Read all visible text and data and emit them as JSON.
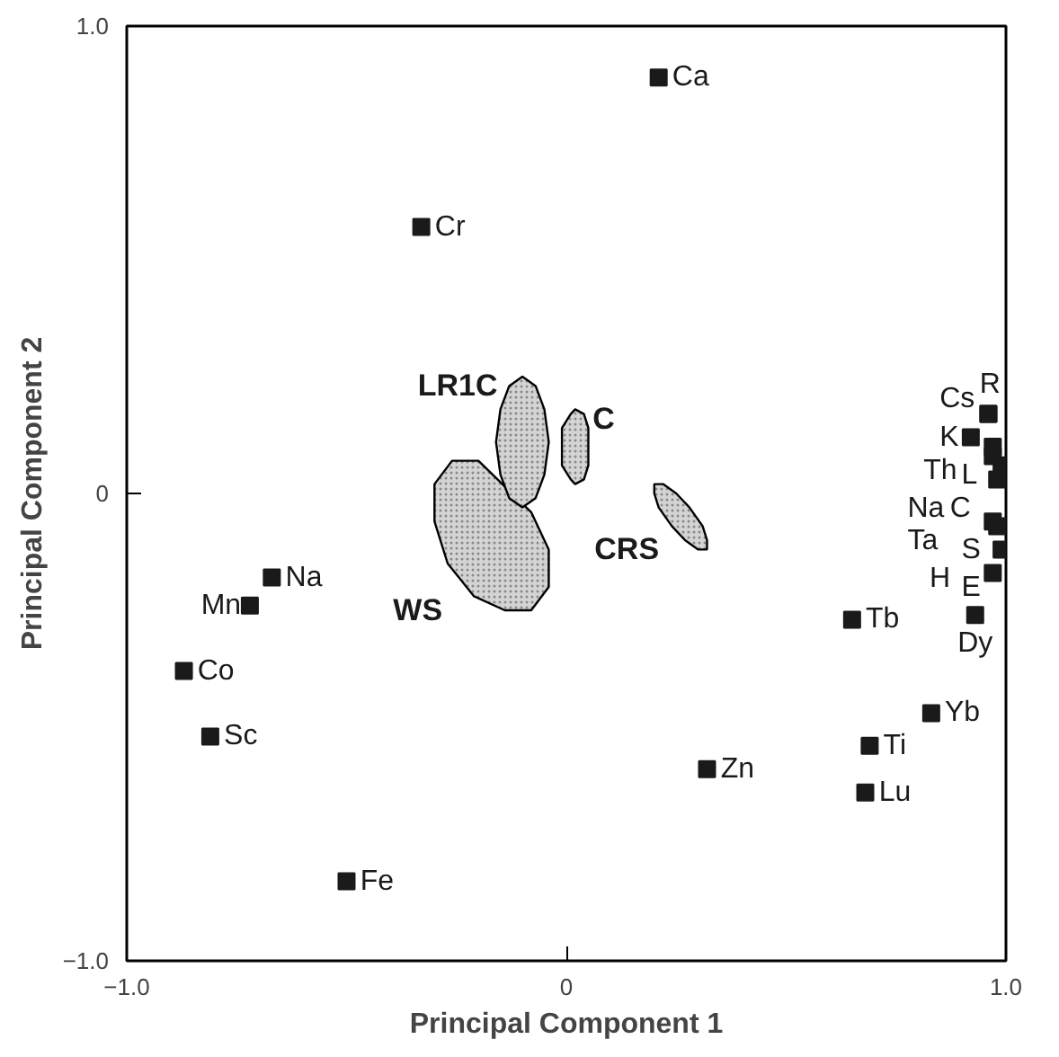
{
  "chart_data": {
    "type": "scatter",
    "xlabel": "Principal Component 1",
    "ylabel": "Principal Component 2",
    "xlim": [
      -1.0,
      1.0
    ],
    "ylim": [
      -1.0,
      1.0
    ],
    "xticks": [
      {
        "value": -1.0,
        "label": "−1.0"
      },
      0,
      {
        "value": 1.0,
        "label": "1.0"
      }
    ],
    "yticks": [
      {
        "value": -1.0,
        "label": "−1.0"
      },
      0,
      {
        "value": 1.0,
        "label": "1.0"
      }
    ],
    "grid": false,
    "marker": "square",
    "series": [
      {
        "type": "area",
        "marker": "none",
        "name": "WS",
        "color": "#d4d4d4",
        "x": [
          -0.08,
          -0.04,
          -0.04,
          -0.08,
          -0.2,
          -0.26,
          -0.3,
          -0.3,
          -0.27,
          -0.21,
          -0.14
        ],
        "values": [
          -0.25,
          -0.2,
          -0.12,
          -0.04,
          0.07,
          0.07,
          0.02,
          -0.06,
          -0.15,
          -0.22,
          -0.25
        ]
      },
      {
        "type": "area",
        "marker": "none",
        "name": "CRS",
        "color": "#d4d4d4",
        "x": [
          0.32,
          0.32,
          0.31,
          0.28,
          0.25,
          0.22,
          0.2,
          0.2,
          0.21,
          0.24,
          0.27,
          0.3
        ],
        "values": [
          -0.12,
          -0.1,
          -0.07,
          -0.03,
          0.0,
          0.02,
          0.02,
          0.0,
          -0.03,
          -0.07,
          -0.1,
          -0.12
        ]
      },
      {
        "type": "area",
        "marker": "none",
        "name": "LR1C",
        "color": "#d4d4d4",
        "x": [
          -0.04,
          -0.05,
          -0.07,
          -0.1,
          -0.13,
          -0.15,
          -0.16,
          -0.15,
          -0.13,
          -0.1,
          -0.07,
          -0.05
        ],
        "values": [
          0.11,
          0.18,
          0.23,
          0.25,
          0.23,
          0.18,
          0.11,
          0.04,
          -0.01,
          -0.03,
          -0.01,
          0.04
        ]
      },
      {
        "type": "area",
        "marker": "none",
        "name": "C",
        "color": "#d4d4d4",
        "x": [
          0.05,
          0.05,
          0.04,
          0.02,
          0.01,
          -0.01,
          -0.01,
          -0.01,
          0.01,
          0.02,
          0.04,
          0.05
        ],
        "values": [
          0.1,
          0.14,
          0.17,
          0.18,
          0.17,
          0.14,
          0.1,
          0.06,
          0.03,
          0.02,
          0.03,
          0.06
        ]
      },
      {
        "color": "#1a1a1a",
        "x": [
          0.21,
          -0.33,
          -0.67,
          -0.72,
          -0.87,
          -0.81,
          -0.5,
          0.32,
          0.65,
          0.83,
          0.69,
          0.68,
          0.96,
          0.92,
          0.97,
          0.97,
          0.99,
          0.98,
          0.97,
          0.98,
          0.99,
          0.97,
          0.93,
          0.96
        ],
        "values": [
          0.89,
          0.57,
          -0.18,
          -0.24,
          -0.38,
          -0.52,
          -0.83,
          -0.59,
          -0.27,
          -0.47,
          -0.54,
          -0.64,
          0.17,
          0.12,
          0.1,
          0.08,
          0.06,
          0.03,
          -0.06,
          -0.07,
          -0.12,
          -0.17,
          -0.26,
          0.17
        ],
        "value_labels": [
          "Ca",
          "Cr",
          "Na",
          "Mn",
          "Co",
          "Sc",
          "Fe",
          "Zn",
          "Tb",
          "Yb",
          "Ti",
          "Lu",
          "R",
          "K",
          "L",
          "Th",
          "C",
          "Na",
          "S",
          "Ta",
          "H",
          "E",
          "Dy",
          "Cs"
        ]
      }
    ]
  }
}
